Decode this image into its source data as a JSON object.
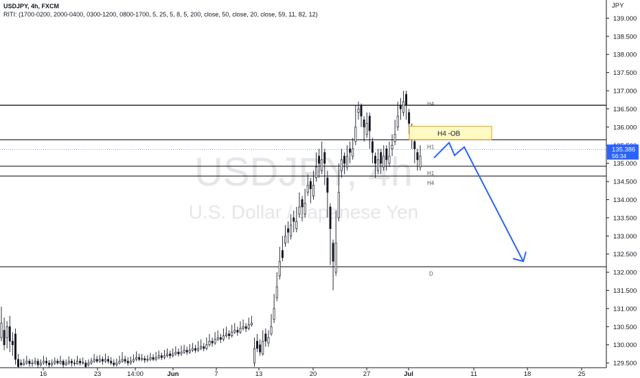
{
  "header": {
    "title": "USDJPY, 4h, FXCM",
    "indicator": "RITI: (1700-0200, 2000-0400, 0300-1200, 0800-1700, 5, 25, 5, 8, 5, 200, close, 50, close, 20, close, 59, 11, 82, 12)"
  },
  "watermark": {
    "symbol": "USDJPY, 4h",
    "name": "U.S. Dollar / Japanese Yen"
  },
  "colors": {
    "candle": "#131722",
    "arrow": "#2962ff",
    "ob_fill": "#fff9c4",
    "ob_border": "#d4a017",
    "price_badge": "#2962ff",
    "level_line": "#000000"
  },
  "chart_data": {
    "type": "candlestick",
    "currency_label": "JPY",
    "y_ticks": [
      "139.000",
      "138.500",
      "138.000",
      "137.500",
      "137.000",
      "136.500",
      "136.000",
      "135.500",
      "135.000",
      "134.500",
      "134.000",
      "133.500",
      "133.000",
      "132.500",
      "132.000",
      "131.500",
      "131.000",
      "130.500",
      "130.000",
      "129.500"
    ],
    "ylim": [
      129.37,
      139.5
    ],
    "x_ticks": [
      "16",
      "23",
      "14:00",
      "Jun",
      "7",
      "13",
      "20",
      "27",
      "Jul",
      "11",
      "18",
      "25"
    ],
    "last_price": "135.386",
    "countdown": "56:34",
    "levels": [
      {
        "label": "H4",
        "value": 136.6
      },
      {
        "label": "H1",
        "value": 135.65
      },
      {
        "label": "H1",
        "value": 134.92
      },
      {
        "label": "H4",
        "value": 134.65
      },
      {
        "label": "D",
        "value": 132.15
      }
    ],
    "order_block": {
      "label": "H4 -OB",
      "top": 136.02,
      "bottom": 135.65
    },
    "projection": [
      135.15,
      135.57,
      135.22,
      135.45,
      132.3
    ],
    "candles": [
      [
        130.2,
        130.6,
        130.4,
        130.1,
        131.05
      ],
      [
        130.4,
        130.0,
        130.25,
        129.85,
        130.75
      ],
      [
        130.2,
        130.5,
        130.4,
        129.9,
        130.65
      ],
      [
        130.5,
        130.1,
        130.05,
        129.8,
        130.8
      ],
      [
        130.1,
        130.0,
        130.3,
        129.7,
        130.35
      ],
      [
        130.3,
        129.6,
        129.9,
        129.45,
        130.45
      ],
      [
        129.6,
        129.4,
        129.6,
        129.38,
        129.75
      ],
      [
        129.5,
        129.45,
        129.5,
        129.4,
        129.6
      ],
      [
        129.45,
        129.5,
        129.48,
        129.42,
        129.62
      ],
      [
        129.5,
        129.55,
        129.5,
        129.45,
        129.7
      ],
      [
        129.55,
        129.48,
        129.45,
        129.4,
        129.62
      ],
      [
        129.48,
        129.5,
        129.45,
        129.4,
        129.6
      ],
      [
        129.5,
        129.55,
        129.5,
        129.44,
        129.65
      ],
      [
        129.55,
        129.45,
        129.4,
        129.38,
        129.62
      ],
      [
        129.45,
        129.5,
        129.48,
        129.4,
        129.6
      ],
      [
        129.5,
        129.55,
        129.6,
        129.45,
        129.7
      ],
      [
        129.55,
        129.5,
        129.48,
        129.42,
        129.66
      ],
      [
        129.5,
        129.45,
        129.4,
        129.38,
        129.58
      ],
      [
        129.45,
        129.5,
        129.48,
        129.4,
        129.6
      ],
      [
        129.5,
        129.55,
        129.5,
        129.44,
        129.65
      ],
      [
        129.55,
        129.5,
        129.5,
        129.45,
        129.62
      ],
      [
        129.5,
        129.55,
        129.6,
        129.46,
        129.7
      ],
      [
        129.55,
        129.45,
        129.4,
        129.38,
        129.6
      ],
      [
        129.45,
        129.5,
        129.48,
        129.42,
        129.6
      ],
      [
        129.5,
        129.55,
        129.58,
        129.45,
        129.68
      ],
      [
        129.55,
        129.5,
        129.45,
        129.4,
        129.62
      ],
      [
        129.5,
        129.48,
        129.5,
        129.42,
        129.6
      ],
      [
        129.48,
        129.55,
        129.6,
        129.45,
        129.7
      ],
      [
        129.55,
        129.5,
        129.5,
        129.43,
        129.63
      ],
      [
        129.5,
        129.52,
        129.55,
        129.45,
        129.65
      ],
      [
        129.5,
        129.4,
        129.45,
        129.38,
        129.58
      ],
      [
        129.45,
        129.5,
        129.48,
        129.4,
        129.6
      ],
      [
        129.5,
        129.55,
        129.5,
        129.45,
        129.64
      ],
      [
        129.55,
        129.6,
        129.65,
        129.5,
        129.75
      ],
      [
        129.6,
        129.55,
        129.58,
        129.5,
        129.7
      ],
      [
        129.55,
        129.6,
        129.62,
        129.5,
        129.72
      ],
      [
        129.6,
        129.55,
        129.5,
        129.45,
        129.68
      ],
      [
        129.55,
        129.6,
        129.65,
        129.5,
        129.76
      ],
      [
        129.6,
        129.55,
        129.55,
        129.48,
        129.7
      ],
      [
        129.55,
        129.5,
        129.5,
        129.44,
        129.66
      ],
      [
        129.5,
        129.45,
        129.45,
        129.4,
        129.6
      ],
      [
        129.45,
        129.5,
        129.5,
        129.4,
        129.62
      ],
      [
        129.5,
        129.55,
        129.6,
        129.46,
        129.7
      ],
      [
        129.55,
        129.6,
        129.68,
        129.5,
        129.8
      ],
      [
        129.6,
        129.55,
        129.52,
        129.48,
        129.7
      ],
      [
        129.55,
        129.5,
        129.48,
        129.42,
        129.66
      ],
      [
        129.5,
        129.55,
        129.55,
        129.45,
        129.68
      ],
      [
        129.55,
        129.6,
        129.62,
        129.5,
        129.74
      ],
      [
        129.6,
        129.65,
        129.7,
        129.55,
        129.82
      ],
      [
        129.65,
        129.6,
        129.6,
        129.55,
        129.76
      ],
      [
        129.6,
        129.62,
        129.65,
        129.55,
        129.75
      ],
      [
        129.62,
        129.58,
        129.55,
        129.5,
        129.7
      ],
      [
        129.58,
        129.6,
        129.62,
        129.52,
        129.72
      ],
      [
        129.6,
        129.65,
        129.68,
        129.55,
        129.78
      ],
      [
        129.65,
        129.6,
        129.6,
        129.55,
        129.74
      ],
      [
        129.6,
        129.65,
        129.7,
        129.55,
        129.8
      ],
      [
        129.65,
        129.7,
        129.72,
        129.6,
        129.84
      ],
      [
        129.7,
        129.65,
        129.62,
        129.58,
        129.78
      ],
      [
        129.65,
        129.7,
        129.75,
        129.6,
        129.86
      ],
      [
        129.7,
        129.75,
        129.78,
        129.65,
        129.9
      ],
      [
        129.75,
        129.7,
        129.68,
        129.62,
        129.84
      ],
      [
        129.7,
        129.75,
        129.8,
        129.65,
        129.9
      ],
      [
        129.75,
        129.8,
        129.85,
        129.7,
        129.96
      ],
      [
        129.8,
        129.75,
        129.72,
        129.68,
        129.9
      ],
      [
        129.75,
        129.8,
        129.88,
        129.7,
        129.98
      ],
      [
        129.8,
        129.85,
        129.9,
        129.75,
        130.0
      ],
      [
        129.85,
        129.8,
        129.78,
        129.72,
        129.95
      ],
      [
        129.8,
        129.85,
        129.92,
        129.75,
        130.02
      ],
      [
        129.85,
        129.9,
        129.95,
        129.8,
        130.05
      ],
      [
        129.9,
        129.85,
        129.82,
        129.78,
        130.0
      ],
      [
        129.85,
        129.9,
        129.98,
        129.8,
        130.1
      ],
      [
        129.9,
        129.95,
        130.05,
        129.85,
        130.15
      ],
      [
        129.95,
        129.9,
        129.88,
        129.82,
        130.05
      ],
      [
        129.9,
        130.0,
        130.1,
        129.85,
        130.2
      ],
      [
        130.0,
        130.1,
        130.2,
        129.95,
        130.3
      ],
      [
        130.1,
        130.05,
        130.0,
        129.95,
        130.2
      ],
      [
        130.05,
        130.15,
        130.25,
        130.0,
        130.35
      ],
      [
        130.15,
        130.2,
        130.3,
        130.1,
        130.4
      ],
      [
        130.2,
        130.15,
        130.1,
        130.05,
        130.3
      ],
      [
        130.15,
        130.25,
        130.35,
        130.1,
        130.45
      ],
      [
        130.25,
        130.3,
        130.35,
        130.2,
        130.5
      ],
      [
        130.3,
        130.25,
        130.2,
        130.15,
        130.4
      ],
      [
        130.25,
        130.35,
        130.45,
        130.2,
        130.55
      ],
      [
        130.35,
        130.4,
        130.48,
        130.3,
        130.6
      ],
      [
        130.4,
        130.35,
        130.3,
        130.25,
        130.5
      ],
      [
        130.35,
        130.45,
        130.55,
        130.3,
        130.65
      ],
      [
        130.45,
        130.5,
        130.6,
        130.4,
        130.7
      ],
      [
        130.5,
        130.45,
        130.4,
        130.35,
        130.6
      ],
      [
        130.45,
        130.55,
        130.65,
        130.4,
        130.75
      ],
      [
        130.55,
        130.6,
        130.7,
        130.5,
        130.8
      ],
      [
        129.5,
        129.9,
        130.1,
        129.4,
        130.2
      ],
      [
        130.1,
        129.9,
        130.0,
        129.8,
        130.3
      ],
      [
        130.0,
        129.8,
        129.75,
        129.7,
        130.15
      ],
      [
        129.75,
        130.1,
        130.3,
        129.7,
        130.4
      ],
      [
        130.3,
        130.1,
        130.05,
        129.95,
        130.45
      ],
      [
        130.05,
        130.2,
        130.3,
        129.95,
        130.4
      ],
      [
        130.3,
        130.5,
        130.7,
        130.25,
        130.85
      ],
      [
        130.7,
        131.0,
        131.3,
        130.6,
        131.4
      ],
      [
        131.3,
        131.6,
        131.9,
        131.2,
        132.0
      ],
      [
        131.9,
        132.3,
        132.6,
        131.8,
        132.7
      ],
      [
        132.6,
        132.4,
        132.8,
        132.3,
        133.0
      ],
      [
        132.8,
        133.0,
        133.2,
        132.7,
        133.3
      ],
      [
        133.2,
        133.1,
        133.0,
        132.8,
        133.4
      ],
      [
        133.0,
        133.3,
        133.5,
        132.9,
        133.6
      ],
      [
        133.5,
        133.4,
        133.2,
        133.1,
        133.7
      ],
      [
        133.2,
        133.4,
        133.6,
        133.1,
        133.8
      ],
      [
        133.6,
        133.8,
        134.0,
        133.5,
        134.2
      ],
      [
        134.0,
        133.8,
        133.6,
        133.4,
        134.1
      ],
      [
        133.6,
        133.9,
        134.2,
        133.5,
        134.3
      ],
      [
        134.2,
        134.4,
        134.5,
        134.1,
        134.7
      ],
      [
        134.5,
        134.3,
        134.1,
        133.9,
        134.6
      ],
      [
        134.1,
        134.4,
        134.6,
        134.0,
        134.8
      ],
      [
        134.6,
        134.9,
        135.2,
        134.5,
        135.3
      ],
      [
        135.2,
        135.0,
        134.8,
        134.6,
        135.4
      ],
      [
        134.8,
        135.1,
        135.3,
        134.7,
        135.6
      ],
      [
        135.3,
        135.0,
        134.6,
        134.4,
        135.4
      ],
      [
        134.6,
        134.2,
        133.8,
        133.5,
        134.8
      ],
      [
        133.8,
        133.2,
        132.8,
        132.2,
        133.9
      ],
      [
        132.8,
        132.3,
        132.0,
        131.5,
        132.9
      ],
      [
        132.0,
        132.8,
        133.5,
        131.9,
        133.7
      ],
      [
        133.5,
        134.2,
        134.8,
        133.4,
        135.0
      ],
      [
        134.8,
        135.1,
        135.2,
        134.6,
        135.4
      ],
      [
        135.2,
        135.0,
        134.9,
        134.7,
        135.3
      ],
      [
        134.9,
        135.2,
        135.4,
        134.8,
        135.5
      ],
      [
        135.4,
        135.3,
        135.2,
        135.0,
        135.6
      ],
      [
        135.2,
        135.4,
        135.6,
        135.1,
        135.7
      ],
      [
        135.6,
        136.0,
        136.4,
        135.5,
        136.6
      ],
      [
        136.4,
        136.5,
        136.6,
        136.2,
        136.7
      ],
      [
        136.6,
        136.3,
        136.2,
        136.0,
        136.65
      ],
      [
        136.2,
        136.0,
        135.8,
        135.6,
        136.3
      ],
      [
        135.8,
        136.1,
        136.3,
        135.7,
        136.4
      ],
      [
        136.3,
        135.9,
        135.6,
        135.4,
        136.4
      ],
      [
        135.6,
        135.3,
        135.2,
        135.0,
        135.7
      ],
      [
        135.2,
        135.0,
        134.8,
        134.6,
        135.3
      ],
      [
        134.8,
        135.1,
        135.3,
        134.7,
        135.4
      ],
      [
        135.3,
        135.0,
        134.9,
        134.7,
        135.4
      ],
      [
        134.9,
        135.2,
        135.4,
        134.8,
        135.5
      ],
      [
        135.4,
        135.1,
        135.0,
        134.8,
        135.5
      ],
      [
        135.0,
        135.2,
        135.4,
        134.9,
        135.6
      ],
      [
        135.4,
        135.5,
        135.6,
        135.2,
        135.8
      ],
      [
        135.6,
        135.8,
        136.0,
        135.5,
        136.2
      ],
      [
        136.0,
        136.3,
        136.6,
        135.9,
        136.7
      ],
      [
        136.6,
        136.5,
        136.4,
        136.2,
        136.8
      ],
      [
        136.4,
        136.7,
        136.9,
        136.3,
        137.0
      ],
      [
        136.9,
        136.6,
        136.4,
        136.2,
        137.0
      ],
      [
        136.4,
        136.1,
        136.0,
        135.8,
        136.5
      ],
      [
        136.0,
        135.8,
        135.6,
        135.4,
        136.1
      ],
      [
        135.6,
        135.4,
        135.3,
        135.0,
        135.7
      ],
      [
        135.3,
        135.1,
        134.9,
        134.8,
        135.4
      ],
      [
        134.9,
        135.2,
        135.4,
        134.8,
        135.5
      ]
    ]
  }
}
